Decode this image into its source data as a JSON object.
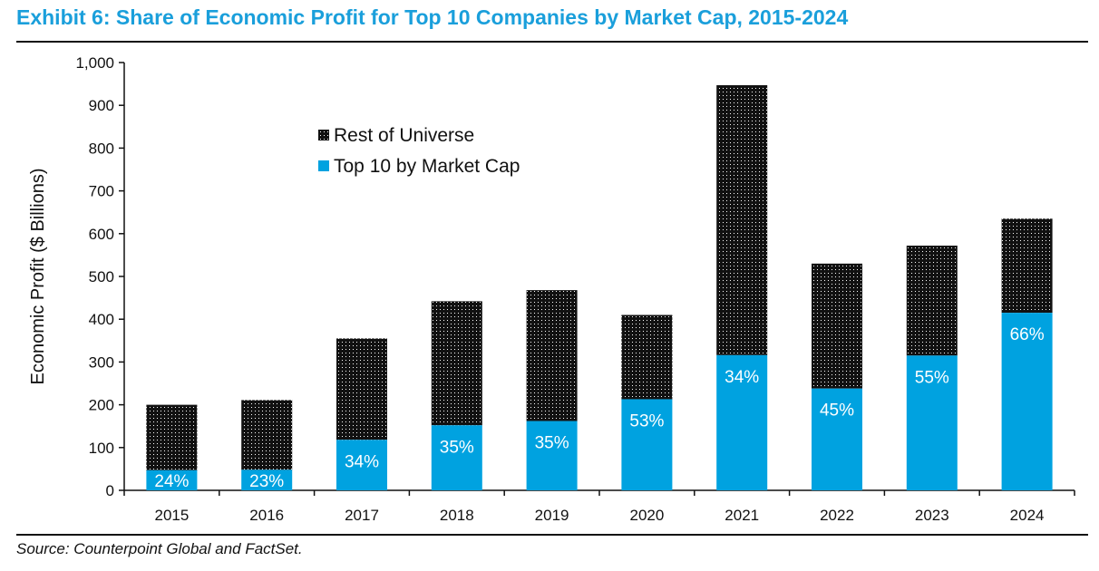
{
  "title": "Exhibit 6: Share of Economic Profit for Top 10 Companies by Market Cap, 2015-2024",
  "source": "Source: Counterpoint Global and FactSet.",
  "colors": {
    "title": "#1a9fdb",
    "top10": "#00a2e0",
    "rest_fill": "#111111",
    "rest_dots": "#ffffff"
  },
  "chart_data": {
    "type": "bar",
    "stacked": true,
    "categories": [
      "2015",
      "2016",
      "2017",
      "2018",
      "2019",
      "2020",
      "2021",
      "2022",
      "2023",
      "2024"
    ],
    "series": [
      {
        "name": "Top 10 by Market Cap",
        "values": [
          47,
          48,
          118,
          152,
          162,
          213,
          316,
          238,
          315,
          415
        ],
        "color": "#00a2e0"
      },
      {
        "name": "Rest of Universe",
        "values": [
          153,
          163,
          237,
          290,
          306,
          197,
          631,
          292,
          257,
          220
        ],
        "pattern": "dotted-black"
      }
    ],
    "data_labels": [
      "24%",
      "23%",
      "34%",
      "35%",
      "35%",
      "53%",
      "34%",
      "45%",
      "55%",
      "66%"
    ],
    "ylabel": "Economic Profit ($ Billions)",
    "xlabel": "",
    "ylim": [
      0,
      1000
    ],
    "yticks": [
      0,
      100,
      200,
      300,
      400,
      500,
      600,
      700,
      800,
      900,
      1000
    ],
    "ytick_labels": [
      "0",
      "100",
      "200",
      "300",
      "400",
      "500",
      "600",
      "700",
      "800",
      "900",
      "1,000"
    ],
    "legend_position": "upper-left-inside",
    "grid": false
  }
}
